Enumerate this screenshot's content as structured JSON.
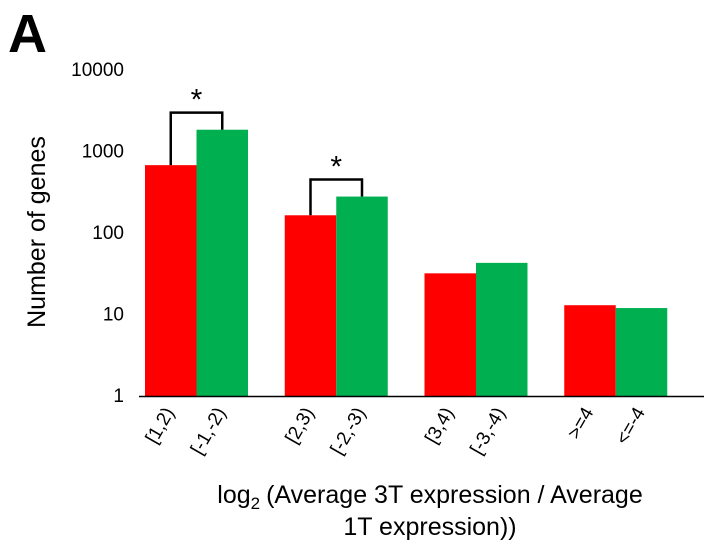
{
  "panel_label": "A",
  "chart_data": {
    "type": "bar",
    "scale": "log",
    "ylim": [
      1,
      10000
    ],
    "ylabel": "Number of genes",
    "xlabel": "(Average 3T expression / Average 1T expression))",
    "xlabel_prefix": "log",
    "xlabel_subscript": "2",
    "xlabel_line1": "(Average 3T expression / Average",
    "xlabel_line2": "1T expression))",
    "y_ticks": [
      "1",
      "10",
      "100",
      "1000",
      "10000"
    ],
    "groups": [
      {
        "labels": [
          "[1,2)",
          "[-1,-2)"
        ],
        "values": [
          680,
          1850
        ],
        "significant": true
      },
      {
        "labels": [
          "[2,3)",
          "[-2,-3)"
        ],
        "values": [
          165,
          280
        ],
        "significant": true
      },
      {
        "labels": [
          "[3,4)",
          "[-3,-4)"
        ],
        "values": [
          32,
          43
        ],
        "significant": false
      },
      {
        "labels": [
          ">=4",
          "<=-4"
        ],
        "values": [
          13,
          12
        ],
        "significant": false
      }
    ],
    "significance_marker": "*",
    "colors": {
      "up": "#ff0000",
      "down": "#00b050"
    },
    "grid": false,
    "legend": "none"
  }
}
